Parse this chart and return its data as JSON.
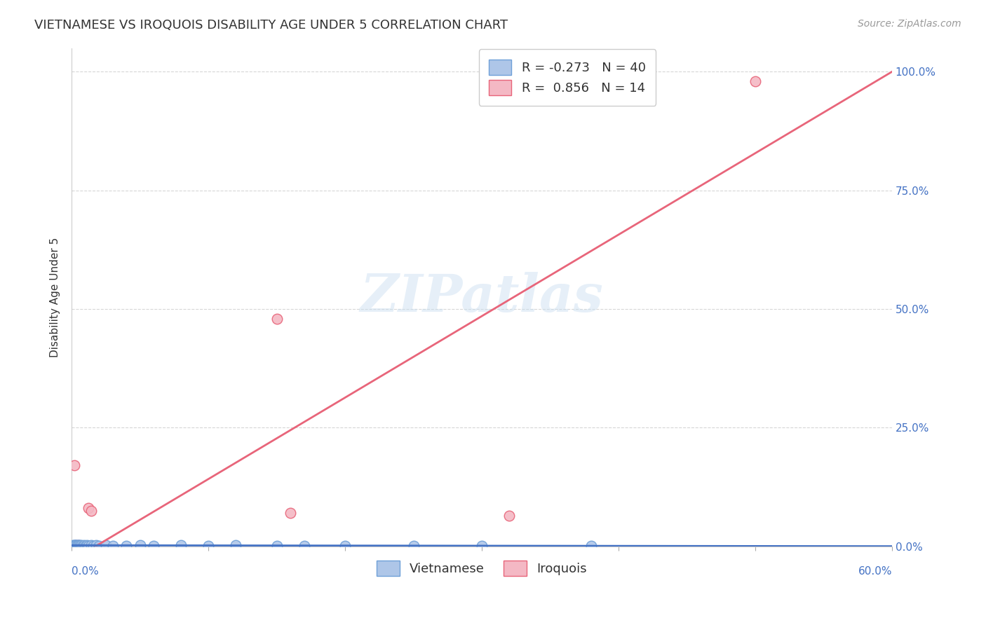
{
  "title": "VIETNAMESE VS IROQUOIS DISABILITY AGE UNDER 5 CORRELATION CHART",
  "source": "Source: ZipAtlas.com",
  "ylabel": "Disability Age Under 5",
  "xlim": [
    0.0,
    0.6
  ],
  "ylim": [
    0.0,
    1.05
  ],
  "background_color": "#ffffff",
  "grid_color": "#cccccc",
  "watermark": "ZIPatlas",
  "viet_line_color": "#4472c4",
  "iroquois_line_color": "#e8657a",
  "viet_scatter_facecolor": "#aec6e8",
  "viet_scatter_edgecolor": "#6fa0d8",
  "iroquois_scatter_facecolor": "#f4b8c4",
  "iroquois_scatter_edgecolor": "#e8657a",
  "title_fontsize": 13,
  "axis_label_fontsize": 11,
  "tick_fontsize": 11,
  "legend_fontsize": 13,
  "source_fontsize": 10,
  "tick_color": "#4472c4",
  "viet_x": [
    0.001,
    0.001,
    0.002,
    0.002,
    0.002,
    0.003,
    0.003,
    0.003,
    0.004,
    0.004,
    0.005,
    0.005,
    0.005,
    0.006,
    0.006,
    0.007,
    0.007,
    0.008,
    0.009,
    0.01,
    0.011,
    0.012,
    0.014,
    0.016,
    0.018,
    0.02,
    0.025,
    0.03,
    0.04,
    0.05,
    0.06,
    0.08,
    0.1,
    0.12,
    0.15,
    0.17,
    0.2,
    0.25,
    0.3,
    0.38
  ],
  "viet_y": [
    0.001,
    0.002,
    0.001,
    0.002,
    0.003,
    0.001,
    0.002,
    0.003,
    0.001,
    0.002,
    0.001,
    0.002,
    0.003,
    0.001,
    0.002,
    0.001,
    0.002,
    0.001,
    0.002,
    0.001,
    0.002,
    0.001,
    0.002,
    0.001,
    0.002,
    0.001,
    0.002,
    0.001,
    0.001,
    0.002,
    0.001,
    0.002,
    0.001,
    0.002,
    0.001,
    0.001,
    0.001,
    0.001,
    0.001,
    0.001
  ],
  "iro_x": [
    0.001,
    0.002,
    0.003,
    0.004,
    0.005,
    0.006,
    0.008,
    0.01,
    0.012,
    0.014,
    0.15,
    0.16,
    0.32,
    0.5
  ],
  "iro_y": [
    0.001,
    0.17,
    0.002,
    0.001,
    0.002,
    0.001,
    0.001,
    0.001,
    0.08,
    0.075,
    0.48,
    0.07,
    0.065,
    0.98
  ],
  "iro_line_x0": 0.0,
  "iro_line_y0": -0.02,
  "iro_line_x1": 0.6,
  "iro_line_y1": 1.0,
  "viet_line_x0": 0.0,
  "viet_line_y0": 0.002,
  "viet_line_x1": 0.6,
  "viet_line_y1": 0.0,
  "y_ticks": [
    0.0,
    0.25,
    0.5,
    0.75,
    1.0
  ],
  "y_tick_labels": [
    "0.0%",
    "25.0%",
    "50.0%",
    "75.0%",
    "100.0%"
  ],
  "x_ticks": [
    0.0,
    0.1,
    0.2,
    0.3,
    0.4,
    0.5,
    0.6
  ],
  "legend_R_color": "#4472c4",
  "legend_N_color": "#4472c4"
}
